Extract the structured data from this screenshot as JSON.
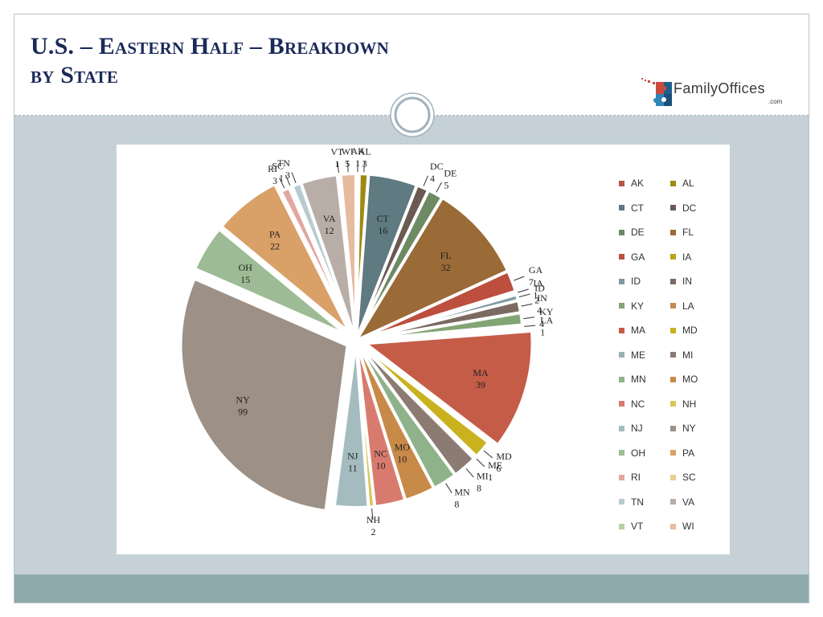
{
  "slide": {
    "title_line1": "U.S. – Eastern Half – Breakdown",
    "title_line2": "by State",
    "logo_name": "FamilyOffices",
    "logo_domain": ".com",
    "colors": {
      "title": "#1b2a5a",
      "content_bg": "#c5d1d7",
      "footer_bg": "#8eaaab"
    }
  },
  "chart_data": {
    "type": "pie",
    "title": "",
    "legend_position": "right",
    "categories": [
      "AK",
      "AL",
      "CT",
      "DC",
      "DE",
      "FL",
      "GA",
      "IA",
      "ID",
      "IN",
      "KY",
      "LA",
      "MA",
      "MD",
      "ME",
      "MI",
      "MN",
      "MO",
      "NC",
      "NH",
      "NJ",
      "NY",
      "OH",
      "PA",
      "RI",
      "SC",
      "TN",
      "VA",
      "VT",
      "WI"
    ],
    "values": [
      1,
      3,
      16,
      4,
      5,
      32,
      7,
      1,
      2,
      4,
      4,
      1,
      39,
      6,
      1,
      8,
      8,
      10,
      10,
      2,
      11,
      99,
      15,
      22,
      3,
      1,
      3,
      12,
      1,
      5
    ],
    "colors": [
      "#b5574a",
      "#9c8b12",
      "#5f7a80",
      "#6a5a52",
      "#6d8a63",
      "#9a6a37",
      "#bd4f3e",
      "#b8a416",
      "#7f9aa0",
      "#7a6a62",
      "#83a474",
      "#c48a4f",
      "#c55c48",
      "#c9b21e",
      "#9ab0b5",
      "#8b7b72",
      "#8fb28a",
      "#c88a48",
      "#d87b6e",
      "#d8c55a",
      "#a4bcc0",
      "#9d9086",
      "#9dbb95",
      "#d9a068",
      "#e0a8a0",
      "#e6d08c",
      "#b7cccf",
      "#b8aea7",
      "#b5d0a7",
      "#e6bba0"
    ]
  }
}
